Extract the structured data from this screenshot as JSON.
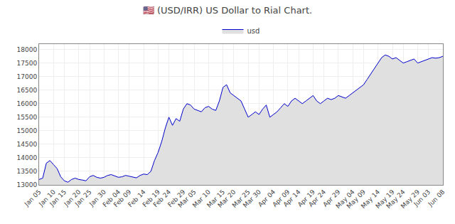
{
  "chart_data": {
    "type": "area",
    "title": "🇺🇸 (USD/IRR) US Dollar to Rial Chart.",
    "categories": [
      "Jan 05",
      null,
      null,
      null,
      "Jan 10",
      null,
      null,
      "Jan 15",
      null,
      null,
      null,
      "Jan 20",
      null,
      null,
      "Jan 25",
      null,
      null,
      null,
      "Jan 30",
      null,
      null,
      null,
      "Feb 04",
      null,
      null,
      "Feb 09",
      null,
      null,
      null,
      "Feb 14",
      null,
      null,
      null,
      "Feb 19",
      null,
      null,
      "Feb 24",
      null,
      null,
      null,
      "Feb 29",
      null,
      null,
      "Mar 05",
      null,
      null,
      null,
      "Mar 10",
      null,
      null,
      null,
      "Mar 15",
      null,
      null,
      "Mar 20",
      null,
      null,
      null,
      "Mar 25",
      null,
      null,
      "Mar 30",
      null,
      null,
      null,
      "Apr 04",
      null,
      null,
      null,
      "Apr 09",
      null,
      null,
      "Apr 14",
      null,
      null,
      null,
      "Apr 19",
      null,
      null,
      "Apr 24",
      null,
      null,
      null,
      "Apr 29",
      null,
      null,
      null,
      "May 04",
      null,
      null,
      "May 09",
      null,
      null,
      null,
      "May 14",
      null,
      null,
      null,
      "May 19",
      null,
      null,
      "May 24",
      null,
      null,
      null,
      "May 29",
      null,
      null,
      "Jun 03",
      null,
      null,
      null,
      "Jun 08"
    ],
    "series": [
      {
        "name": "usd",
        "color": "#0000cc",
        "values": [
          13200,
          13250,
          13800,
          13900,
          13750,
          13600,
          13300,
          13150,
          13100,
          13200,
          13250,
          13200,
          13180,
          13150,
          13300,
          13350,
          13280,
          13250,
          13280,
          13350,
          13380,
          13320,
          13280,
          13300,
          13350,
          13320,
          13280,
          13260,
          13350,
          13400,
          13380,
          13500,
          13900,
          14200,
          14600,
          15100,
          15500,
          15200,
          15450,
          15350,
          15800,
          16000,
          15950,
          15800,
          15750,
          15700,
          15850,
          15900,
          15800,
          15750,
          16100,
          16600,
          16700,
          16400,
          16300,
          16200,
          16100,
          15800,
          15500,
          15600,
          15700,
          15600,
          15800,
          15950,
          15500,
          15600,
          15700,
          15850,
          16000,
          15900,
          16100,
          16200,
          16100,
          16000,
          16100,
          16200,
          16300,
          16100,
          16000,
          16100,
          16200,
          16150,
          16200,
          16300,
          16250,
          16200,
          16300,
          16400,
          16500,
          16600,
          16700,
          16900,
          17100,
          17300,
          17500,
          17700,
          17800,
          17750,
          17650,
          17700,
          17600,
          17500,
          17550,
          17600,
          17650,
          17500,
          17550,
          17600,
          17650,
          17700,
          17680,
          17700,
          17750
        ]
      }
    ],
    "ylim": [
      13000,
      18200
    ],
    "yticks": [
      13000,
      13500,
      14000,
      14500,
      15000,
      15500,
      16000,
      16500,
      17000,
      17500,
      18000
    ],
    "grid": true,
    "legend": "top"
  }
}
